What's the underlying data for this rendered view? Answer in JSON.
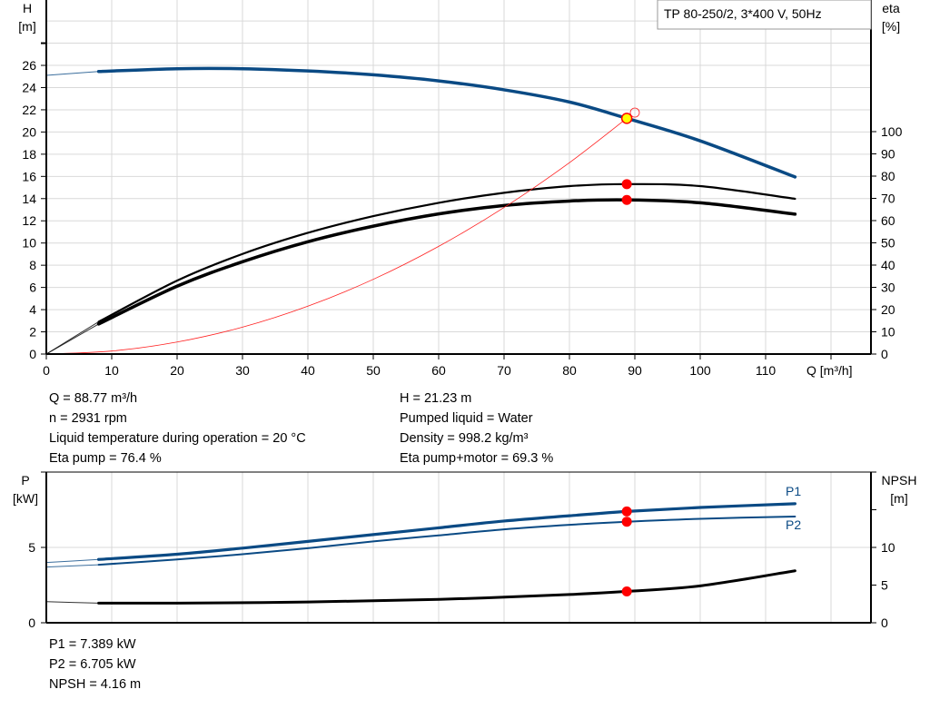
{
  "pump_title": "TP 80-250/2, 3*400 V, 50Hz",
  "colors": {
    "head": "#0a4a84",
    "eta": "#000000",
    "system": "#ff2020",
    "duty_point": "#ff0000",
    "operating_point_fill": "#ffff00",
    "grid": "#d9d9d9"
  },
  "chart_data": [
    {
      "type": "line",
      "title": "",
      "xlabel": "Q [m³/h]",
      "ylabel": "H [m]",
      "ylabel_name": "H",
      "ylabel_unit": "[m]",
      "y2label_name": "eta",
      "y2label_unit": "[%]",
      "xlim": [
        0,
        126
      ],
      "ylim": [
        0,
        31.9
      ],
      "y2lim": [
        0,
        159
      ],
      "xticks": [
        0,
        10,
        20,
        30,
        40,
        50,
        60,
        70,
        80,
        90,
        100,
        110
      ],
      "yticks": [
        0,
        2,
        4,
        6,
        8,
        10,
        12,
        14,
        16,
        18,
        20,
        22,
        24,
        26
      ],
      "y2ticks": [
        0,
        10,
        20,
        30,
        40,
        50,
        60,
        70,
        80,
        90,
        100
      ],
      "grid": true,
      "series": [
        {
          "id": "head",
          "axis": "left",
          "extrapolated": [
            [
              0,
              25.1
            ],
            [
              8,
              25.45
            ]
          ],
          "points": [
            [
              8,
              25.45
            ],
            [
              20,
              25.7
            ],
            [
              30,
              25.7
            ],
            [
              40,
              25.5
            ],
            [
              50,
              25.15
            ],
            [
              60,
              24.6
            ],
            [
              70,
              23.8
            ],
            [
              80,
              22.7
            ],
            [
              88.77,
              21.23
            ],
            [
              100,
              19.2
            ],
            [
              114.5,
              15.95
            ]
          ]
        },
        {
          "id": "eta-pump",
          "axis": "right",
          "extrapolated": [
            [
              0,
              0
            ],
            [
              8,
              14.5
            ]
          ],
          "points": [
            [
              8,
              14.5
            ],
            [
              20,
              33
            ],
            [
              30,
              45
            ],
            [
              40,
              54.5
            ],
            [
              50,
              62
            ],
            [
              60,
              68
            ],
            [
              70,
              72.5
            ],
            [
              80,
              75.5
            ],
            [
              88.77,
              76.4
            ],
            [
              100,
              75.5
            ],
            [
              114.5,
              69.8
            ]
          ]
        },
        {
          "id": "eta-pump-motor",
          "axis": "right",
          "extrapolated": [
            [
              0,
              0
            ],
            [
              8,
              13.5
            ]
          ],
          "points": [
            [
              8,
              13.5
            ],
            [
              20,
              30.5
            ],
            [
              30,
              41.5
            ],
            [
              40,
              50.5
            ],
            [
              50,
              57.5
            ],
            [
              60,
              63
            ],
            [
              70,
              66.8
            ],
            [
              80,
              68.8
            ],
            [
              88.77,
              69.3
            ],
            [
              100,
              68
            ],
            [
              114.5,
              62.9
            ]
          ]
        },
        {
          "id": "system-curve",
          "axis": "left",
          "points": [
            [
              0,
              0
            ],
            [
              10,
              0.27
            ],
            [
              20,
              1.08
            ],
            [
              30,
              2.42
            ],
            [
              40,
              4.31
            ],
            [
              50,
              6.73
            ],
            [
              60,
              9.7
            ],
            [
              70,
              13.2
            ],
            [
              80,
              17.24
            ],
            [
              88.77,
              21.23
            ]
          ]
        }
      ],
      "duty_points": [
        {
          "series": "head",
          "q": 88.77,
          "value": 21.23,
          "style": "operating"
        },
        {
          "series": "eta-pump",
          "q": 88.77,
          "value": 76.4
        },
        {
          "series": "eta-pump-motor",
          "q": 88.77,
          "value": 69.3
        }
      ]
    },
    {
      "type": "line",
      "title": "",
      "ylabel_name": "P",
      "ylabel_unit": "[kW]",
      "y2label_name": "NPSH",
      "y2label_unit": "[m]",
      "xlim": [
        0,
        126
      ],
      "ylim": [
        0,
        10
      ],
      "y2lim": [
        0,
        20
      ],
      "yticks": [
        0,
        5
      ],
      "y2ticks": [
        0,
        5,
        10
      ],
      "grid": true,
      "series": [
        {
          "id": "P1",
          "name": "P1",
          "axis": "left",
          "extrapolated": [
            [
              0,
              4.0
            ],
            [
              8,
              4.2
            ]
          ],
          "points": [
            [
              8,
              4.2
            ],
            [
              20,
              4.55
            ],
            [
              30,
              4.95
            ],
            [
              40,
              5.4
            ],
            [
              50,
              5.85
            ],
            [
              60,
              6.3
            ],
            [
              70,
              6.75
            ],
            [
              80,
              7.1
            ],
            [
              88.77,
              7.389
            ],
            [
              100,
              7.65
            ],
            [
              114.5,
              7.9
            ]
          ]
        },
        {
          "id": "P2",
          "name": "P2",
          "axis": "left",
          "extrapolated": [
            [
              0,
              3.7
            ],
            [
              8,
              3.85
            ]
          ],
          "points": [
            [
              8,
              3.85
            ],
            [
              20,
              4.2
            ],
            [
              30,
              4.55
            ],
            [
              40,
              4.95
            ],
            [
              50,
              5.4
            ],
            [
              60,
              5.8
            ],
            [
              70,
              6.2
            ],
            [
              80,
              6.5
            ],
            [
              88.77,
              6.705
            ],
            [
              100,
              6.9
            ],
            [
              114.5,
              7.05
            ]
          ]
        },
        {
          "id": "NPSH",
          "axis": "right",
          "extrapolated": [
            [
              0,
              2.8
            ],
            [
              8,
              2.6
            ]
          ],
          "points": [
            [
              8,
              2.6
            ],
            [
              20,
              2.6
            ],
            [
              40,
              2.75
            ],
            [
              60,
              3.1
            ],
            [
              80,
              3.75
            ],
            [
              88.77,
              4.16
            ],
            [
              100,
              4.9
            ],
            [
              114.5,
              6.9
            ]
          ]
        }
      ],
      "duty_points": [
        {
          "series": "P1",
          "q": 88.77,
          "value": 7.389
        },
        {
          "series": "P2",
          "q": 88.77,
          "value": 6.705
        },
        {
          "series": "NPSH",
          "q": 88.77,
          "value": 4.16
        }
      ]
    }
  ],
  "results_top": {
    "left": [
      "Q = 88.77 m³/h",
      "n = 2931 rpm",
      "Liquid temperature during operation = 20 °C",
      "Eta pump = 76.4 %"
    ],
    "right": [
      "H = 21.23 m",
      "Pumped liquid = Water",
      "Density = 998.2 kg/m³",
      "Eta pump+motor = 69.3 %"
    ]
  },
  "results_bottom": [
    "P1 = 7.389 kW",
    "P2 = 6.705 kW",
    "NPSH = 4.16 m"
  ]
}
